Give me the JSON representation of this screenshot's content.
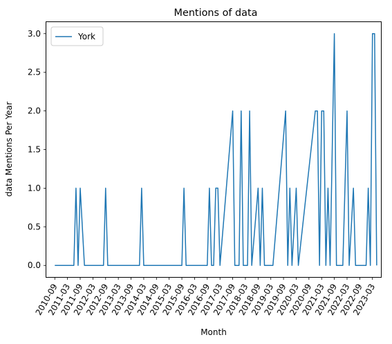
{
  "chart_data": {
    "type": "line",
    "title": "Mentions of data",
    "xlabel": "Month",
    "ylabel": "data Mentions Per Year",
    "xtick_labels": [
      "2010-09",
      "2011-03",
      "2011-09",
      "2012-03",
      "2012-09",
      "2013-03",
      "2013-09",
      "2014-03",
      "2014-09",
      "2015-03",
      "2015-09",
      "2016-03",
      "2016-09",
      "2017-03",
      "2017-09",
      "2018-03",
      "2018-09",
      "2019-03",
      "2019-09",
      "2020-03",
      "2020-09",
      "2021-03",
      "2021-09",
      "2022-03",
      "2022-09",
      "2023-03"
    ],
    "ytick_labels": [
      "0.0",
      "0.5",
      "1.0",
      "1.5",
      "2.0",
      "2.5",
      "3.0"
    ],
    "ylim": [
      -0.15,
      3.15
    ],
    "xlim": [
      "2010-05",
      "2023-07"
    ],
    "grid": false,
    "legend": {
      "position": "top-left",
      "entries": [
        "York"
      ]
    },
    "series": [
      {
        "name": "York",
        "color": "#1f77b4",
        "points": [
          [
            "2010-09",
            0
          ],
          [
            "2011-06",
            0
          ],
          [
            "2011-07",
            1
          ],
          [
            "2011-08",
            0
          ],
          [
            "2011-09",
            1
          ],
          [
            "2011-11",
            0
          ],
          [
            "2012-08",
            0
          ],
          [
            "2012-09",
            1
          ],
          [
            "2012-10",
            0
          ],
          [
            "2014-01",
            0
          ],
          [
            "2014-02",
            1
          ],
          [
            "2014-03",
            0
          ],
          [
            "2015-09",
            0
          ],
          [
            "2015-10",
            1
          ],
          [
            "2015-11",
            0
          ],
          [
            "2016-09",
            0
          ],
          [
            "2016-10",
            1
          ],
          [
            "2016-11",
            0
          ],
          [
            "2016-12",
            0
          ],
          [
            "2017-01",
            1
          ],
          [
            "2017-02",
            1
          ],
          [
            "2017-03",
            0
          ],
          [
            "2017-09",
            2
          ],
          [
            "2017-10",
            0
          ],
          [
            "2017-12",
            0
          ],
          [
            "2018-01",
            2
          ],
          [
            "2018-02",
            0
          ],
          [
            "2018-04",
            0
          ],
          [
            "2018-05",
            2
          ],
          [
            "2018-06",
            0
          ],
          [
            "2018-09",
            1
          ],
          [
            "2018-10",
            0
          ],
          [
            "2018-11",
            1
          ],
          [
            "2018-12",
            0
          ],
          [
            "2019-04",
            0
          ],
          [
            "2019-10",
            2
          ],
          [
            "2019-11",
            0
          ],
          [
            "2019-12",
            1
          ],
          [
            "2020-01",
            0
          ],
          [
            "2020-03",
            1
          ],
          [
            "2020-04",
            0
          ],
          [
            "2020-12",
            2
          ],
          [
            "2021-01",
            2
          ],
          [
            "2021-02",
            0
          ],
          [
            "2021-03",
            2
          ],
          [
            "2021-04",
            2
          ],
          [
            "2021-05",
            0
          ],
          [
            "2021-06",
            1
          ],
          [
            "2021-07",
            0
          ],
          [
            "2021-09",
            3
          ],
          [
            "2021-10",
            0
          ],
          [
            "2022-01",
            0
          ],
          [
            "2022-03",
            2
          ],
          [
            "2022-04",
            0
          ],
          [
            "2022-06",
            1
          ],
          [
            "2022-07",
            0
          ],
          [
            "2022-12",
            0
          ],
          [
            "2023-01",
            1
          ],
          [
            "2023-02",
            0
          ],
          [
            "2023-03",
            3
          ],
          [
            "2023-04",
            3
          ],
          [
            "2023-05",
            0
          ]
        ]
      }
    ]
  }
}
